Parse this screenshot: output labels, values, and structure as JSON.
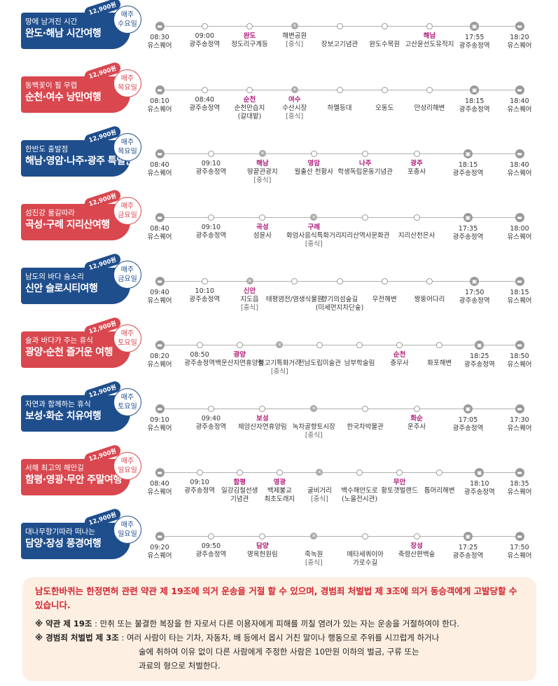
{
  "colors": {
    "blue": "#1f4e8c",
    "red": "#d9474f"
  },
  "tours": [
    {
      "theme": "blue",
      "sub": "땅에 남겨진 시간",
      "title": "완도·해남 시간여행",
      "price": "12,900원",
      "day": [
        "매주",
        "수요일"
      ],
      "stops": [
        [
          "bus",
          "08:30",
          "유스퀘어"
        ],
        [
          "dot",
          "09:00",
          "광주송정역"
        ],
        [
          "dot",
          "완도",
          "정도리구계등"
        ],
        [
          "fork",
          "해변공원",
          "[중식]"
        ],
        [
          "dot",
          "",
          "장보고기념관"
        ],
        [
          "dot",
          "",
          "완도수목원"
        ],
        [
          "dot",
          "해남",
          "고산윤선도유적지"
        ],
        [
          "train",
          "17:55",
          "광주송정역"
        ],
        [
          "bus",
          "18:20",
          "유스퀘어"
        ]
      ]
    },
    {
      "theme": "red",
      "sub": "동백꽃이 필 무렵",
      "title": "순천·여수 낭만여행",
      "price": "12,900원",
      "day": [
        "매주",
        "목요일"
      ],
      "stops": [
        [
          "bus",
          "08:10",
          "유스퀘어"
        ],
        [
          "dot",
          "08:40",
          "광주송정역"
        ],
        [
          "dot",
          "순천",
          "순천만습지",
          "(갈대밭)"
        ],
        [
          "fork",
          "여수",
          "수산시장",
          "[중식]"
        ],
        [
          "dot",
          "",
          "하멜등대"
        ],
        [
          "dot",
          "",
          "오동도"
        ],
        [
          "dot",
          "",
          "만성리해변"
        ],
        [
          "train",
          "18:15",
          "광주송정역"
        ],
        [
          "bus",
          "18:40",
          "유스퀘어"
        ]
      ]
    },
    {
      "theme": "blue",
      "sub": "한반도 출발점",
      "title": "해남·영암·나주·광주 특별한여행",
      "price": "12,900원",
      "day": [
        "매주",
        "목요일"
      ],
      "stops": [
        [
          "bus",
          "08:40",
          "유스퀘어"
        ],
        [
          "dot",
          "09:10",
          "광주송정역"
        ],
        [
          "fork",
          "해남",
          "땅끝관광지",
          "[중식]"
        ],
        [
          "dot",
          "영암",
          "월출산 천황사"
        ],
        [
          "dot",
          "나주",
          "학생독립운동기념관"
        ],
        [
          "dot",
          "광주",
          "포충사"
        ],
        [
          "train",
          "18:15",
          "광주송정역"
        ],
        [
          "bus",
          "18:40",
          "유스퀘어"
        ]
      ]
    },
    {
      "theme": "red",
      "sub": "섬진강 물길따라",
      "title": "곡성·구례 지리산여행",
      "price": "12,900원",
      "day": [
        "매주",
        "금요일"
      ],
      "stops": [
        [
          "bus",
          "08:40",
          "유스퀘어"
        ],
        [
          "dot",
          "09:10",
          "광주송정역"
        ],
        [
          "dot",
          "곡성",
          "섬윤사"
        ],
        [
          "fork",
          "구례",
          "화엄사음식특화거리",
          "[중식]"
        ],
        [
          "dot",
          "",
          "지리산역사문화관"
        ],
        [
          "dot",
          "",
          "지리산천은사"
        ],
        [
          "train",
          "17:35",
          "광주송정역"
        ],
        [
          "bus",
          "18:00",
          "유스퀘어"
        ]
      ]
    },
    {
      "theme": "blue",
      "sub": "남도의 바다 숨소리",
      "title": "신안 슬로시티여행",
      "price": "12,900원",
      "day": [
        "매주",
        "금요일"
      ],
      "stops": [
        [
          "bus",
          "09:40",
          "유스퀘어"
        ],
        [
          "dot",
          "10:10",
          "광주송정역"
        ],
        [
          "fork",
          "신안",
          "지도읍",
          "[중식]"
        ],
        [
          "dot",
          "",
          "태평염전/염생식물원"
        ],
        [
          "dot",
          "",
          "향기의섬숲길",
          "(미세먼지차단숲)"
        ],
        [
          "dot",
          "",
          "우전해변"
        ],
        [
          "dot",
          "",
          "짱뚱어다리"
        ],
        [
          "train",
          "17:50",
          "광주송정역"
        ],
        [
          "bus",
          "18:15",
          "유스퀘어"
        ]
      ]
    },
    {
      "theme": "red",
      "sub": "술과 바다가 주는 휴식",
      "title": "광양·순천 즐거운 여행",
      "price": "12,900원",
      "day": [
        "매주",
        "토요일"
      ],
      "stops": [
        [
          "bus",
          "08:20",
          "유스퀘어"
        ],
        [
          "dot",
          "08:50",
          "광주송정역"
        ],
        [
          "dot",
          "광양",
          "백운산자연휴양림"
        ],
        [
          "fork",
          "",
          "불고기특화거리",
          "[중식]"
        ],
        [
          "dot",
          "",
          "전남도립미술관"
        ],
        [
          "dot",
          "",
          "남부학술림"
        ],
        [
          "dot",
          "순천",
          "충무사"
        ],
        [
          "dot",
          "",
          "화포해변"
        ],
        [
          "train",
          "18:25",
          "광주송정역"
        ],
        [
          "bus",
          "18:50",
          "유스퀘어"
        ]
      ]
    },
    {
      "theme": "blue",
      "sub": "자연과 함께하는 휴식",
      "title": "보성·화순 치유여행",
      "price": "12,900원",
      "day": [
        "매주",
        "토요일"
      ],
      "stops": [
        [
          "bus",
          "09:10",
          "유스퀘어"
        ],
        [
          "dot",
          "09:40",
          "광주송정역"
        ],
        [
          "dot",
          "보성",
          "제암산자연휴양림"
        ],
        [
          "fork",
          "",
          "녹차골향토시장",
          "[중식]"
        ],
        [
          "dot",
          "",
          "한국차박물관"
        ],
        [
          "dot",
          "화순",
          "운주사"
        ],
        [
          "train",
          "17:05",
          "광주송정역"
        ],
        [
          "bus",
          "17:30",
          "유스퀘어"
        ]
      ]
    },
    {
      "theme": "red",
      "sub": "서해 최고의 해안길",
      "title": "함평·영광·무안 주말여행",
      "price": "12,900원",
      "day": [
        "매주",
        "일요일"
      ],
      "stops": [
        [
          "bus",
          "08:40",
          "유스퀘어"
        ],
        [
          "dot",
          "09:10",
          "광주송정역"
        ],
        [
          "dot",
          "함평",
          "일강김철선생",
          "기념관"
        ],
        [
          "dot",
          "영광",
          "백제불교",
          "최초도래지"
        ],
        [
          "fork",
          "",
          "굴비거리",
          "[중식]"
        ],
        [
          "dot",
          "",
          "백수해안도로",
          "(노을전시관)"
        ],
        [
          "dot",
          "무안",
          "황토갯벌랜드"
        ],
        [
          "dot",
          "",
          "톱머리해변"
        ],
        [
          "train",
          "18:10",
          "광주송정역"
        ],
        [
          "bus",
          "18:35",
          "유스퀘어"
        ]
      ]
    },
    {
      "theme": "blue",
      "sub": "대나무향기따라 떠나는",
      "title": "담양·장성 풍경여행",
      "price": "12,900원",
      "day": [
        "매주",
        "일요일"
      ],
      "stops": [
        [
          "bus",
          "09:20",
          "유스퀘어"
        ],
        [
          "dot",
          "09:50",
          "광주송정역"
        ],
        [
          "dot",
          "담양",
          "명옥헌원림"
        ],
        [
          "fork",
          "",
          "죽녹원",
          "[중식]"
        ],
        [
          "dot",
          "",
          "메타세쿼이아",
          "가로수길"
        ],
        [
          "dot",
          "장성",
          "축령산편백숲"
        ],
        [
          "train",
          "17:25",
          "광주송정역"
        ],
        [
          "bus",
          "17:50",
          "유스퀘어"
        ]
      ]
    }
  ],
  "notice": {
    "warning": "남도한바퀴는 한정면허 관련 약관 제 19조에 의거 운송을 거절 할 수 있으며, 경범죄 처벌법 제 3조에 의거 동승객에게 고발당할 수 있습니다.",
    "rule1_label": "※ 약관 제 19조",
    "rule1_text": " : 만취 또는 불결한 복장을 한 자로서 다른 이용자에게 피해를 끼칠 염려가 있는 자는 운송을 거절하여야 한다.",
    "rule2_label": "※ 경범죄 처벌법 제 3조",
    "rule2_text": " : 여러 사람이 타는 기차, 자동차, 배 등에서 몹시 거친 말이나 행동으로 주위를 시끄럽게 하거나",
    "rule2_line2": "술에 취하여 이유 없이 다른 사람에게  주정한 사람은 10만원 이하의 벌금, 구류 또는",
    "rule2_line3": "과료의 형으로 처벌한다."
  }
}
